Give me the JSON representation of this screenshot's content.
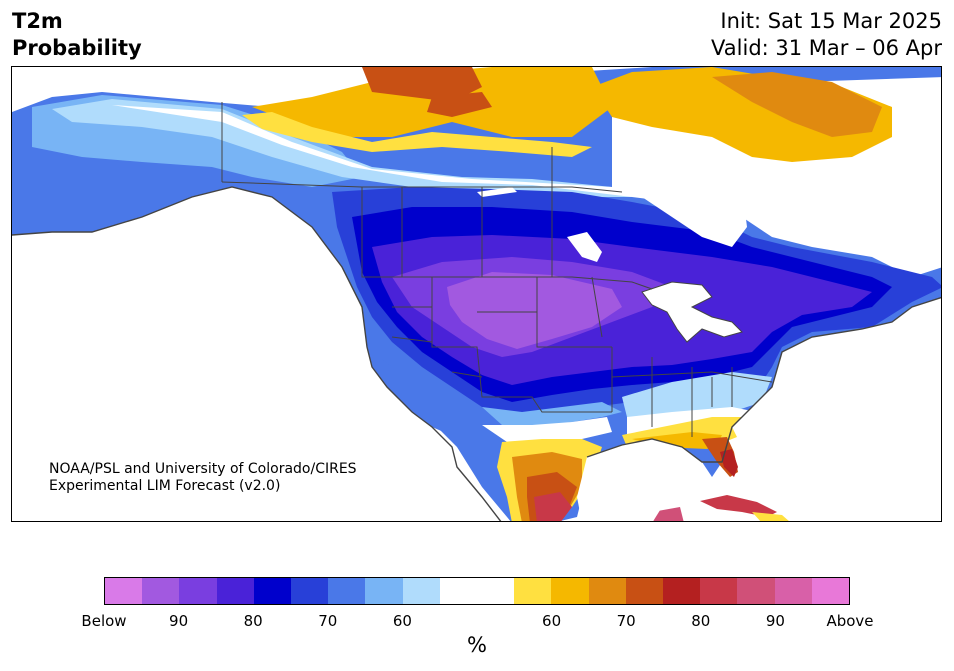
{
  "title": {
    "variable": "T2m",
    "subtitle": "Probability",
    "init": "Init: Sat 15 Mar 2025",
    "valid": "Valid: 31 Mar – 06 Apr"
  },
  "credit": {
    "line1": "NOAA/PSL and University of Colorado/CIRES",
    "line2": "Experimental LIM Forecast (v2.0)"
  },
  "colorbar": {
    "colors": [
      "#d97ae8",
      "#a259e0",
      "#7a3ee0",
      "#4a22d8",
      "#0000cc",
      "#2840d8",
      "#4a78e8",
      "#78b4f5",
      "#b0dcfc",
      "#ffffff",
      "#ffffff",
      "#ffe040",
      "#f5b800",
      "#e08a10",
      "#c85014",
      "#b42020",
      "#c83848",
      "#d05078",
      "#d860a8",
      "#e878d8"
    ],
    "ticks": [
      "Below",
      "90",
      "80",
      "70",
      "60",
      "",
      "60",
      "70",
      "80",
      "90",
      "Above"
    ],
    "unit": "%"
  },
  "colors": {
    "ocean": "#ffffff",
    "border": "#444444"
  }
}
